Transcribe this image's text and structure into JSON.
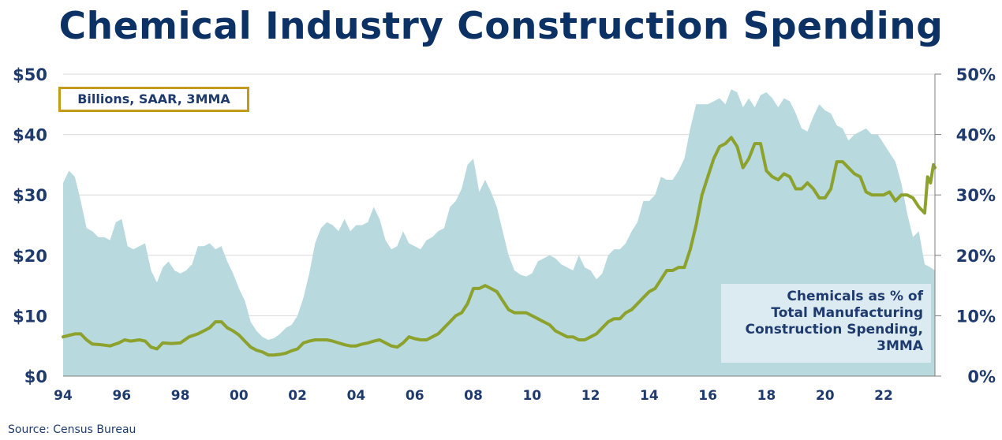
{
  "chart_data": {
    "type": "area",
    "title": "Chemical Industry Construction Spending",
    "unit_note": "Billions, SAAR, 3MMA",
    "source": "Source:  Census Bureau",
    "xlim": [
      1994.0,
      2023.75
    ],
    "x_ticks": [
      "94",
      "96",
      "98",
      "00",
      "02",
      "04",
      "06",
      "08",
      "10",
      "12",
      "14",
      "16",
      "18",
      "20",
      "22"
    ],
    "y_left": {
      "ticks": [
        "$0",
        "$10",
        "$20",
        "$30",
        "$40",
        "$50"
      ],
      "lim": [
        0,
        50
      ]
    },
    "y_right": {
      "ticks": [
        "0%",
        "10%",
        "20%",
        "30%",
        "40%",
        "50%"
      ],
      "lim": [
        0,
        50
      ]
    },
    "grid": "horizontal",
    "series": [
      {
        "name": "Chemicals as % of Total Manufacturing Construction Spending, 3MMA",
        "label_lines": [
          "Chemicals as % of",
          "Total Manufacturing",
          "Construction Spending,",
          "3MMA"
        ],
        "axis": "right",
        "kind": "area",
        "color": "#b8d9de",
        "points": [
          [
            1994.0,
            32
          ],
          [
            1994.2,
            34
          ],
          [
            1994.4,
            33
          ],
          [
            1994.6,
            29
          ],
          [
            1994.8,
            24.5
          ],
          [
            1995.0,
            24
          ],
          [
            1995.2,
            23
          ],
          [
            1995.4,
            23
          ],
          [
            1995.6,
            22.5
          ],
          [
            1995.8,
            25.5
          ],
          [
            1996.0,
            26
          ],
          [
            1996.2,
            21.5
          ],
          [
            1996.4,
            21
          ],
          [
            1996.6,
            21.5
          ],
          [
            1996.8,
            22
          ],
          [
            1997.0,
            17.5
          ],
          [
            1997.2,
            15.5
          ],
          [
            1997.4,
            18
          ],
          [
            1997.6,
            19
          ],
          [
            1997.8,
            17.5
          ],
          [
            1998.0,
            17
          ],
          [
            1998.2,
            17.5
          ],
          [
            1998.4,
            18.5
          ],
          [
            1998.6,
            21.5
          ],
          [
            1998.8,
            21.5
          ],
          [
            1999.0,
            22
          ],
          [
            1999.2,
            21
          ],
          [
            1999.4,
            21.5
          ],
          [
            1999.6,
            19
          ],
          [
            1999.8,
            17
          ],
          [
            2000.0,
            14.5
          ],
          [
            2000.2,
            12.5
          ],
          [
            2000.4,
            9
          ],
          [
            2000.6,
            7.5
          ],
          [
            2000.8,
            6.5
          ],
          [
            2001.0,
            6
          ],
          [
            2001.2,
            6.3
          ],
          [
            2001.4,
            7
          ],
          [
            2001.6,
            8
          ],
          [
            2001.8,
            8.5
          ],
          [
            2002.0,
            10
          ],
          [
            2002.2,
            13
          ],
          [
            2002.4,
            17
          ],
          [
            2002.6,
            22
          ],
          [
            2002.8,
            24.5
          ],
          [
            2003.0,
            25.5
          ],
          [
            2003.2,
            25
          ],
          [
            2003.4,
            24
          ],
          [
            2003.6,
            26
          ],
          [
            2003.8,
            24
          ],
          [
            2004.0,
            25
          ],
          [
            2004.2,
            25
          ],
          [
            2004.4,
            25.5
          ],
          [
            2004.6,
            28
          ],
          [
            2004.8,
            26
          ],
          [
            2005.0,
            22.5
          ],
          [
            2005.2,
            21
          ],
          [
            2005.4,
            21.5
          ],
          [
            2005.6,
            24
          ],
          [
            2005.8,
            22
          ],
          [
            2006.0,
            21.5
          ],
          [
            2006.2,
            21
          ],
          [
            2006.4,
            22.5
          ],
          [
            2006.6,
            23
          ],
          [
            2006.8,
            24
          ],
          [
            2007.0,
            24.5
          ],
          [
            2007.2,
            28
          ],
          [
            2007.4,
            29
          ],
          [
            2007.6,
            31
          ],
          [
            2007.8,
            35
          ],
          [
            2008.0,
            36
          ],
          [
            2008.2,
            30.5
          ],
          [
            2008.4,
            32.5
          ],
          [
            2008.6,
            30.5
          ],
          [
            2008.8,
            28
          ],
          [
            2009.0,
            24
          ],
          [
            2009.2,
            20
          ],
          [
            2009.4,
            17.5
          ],
          [
            2009.6,
            16.8
          ],
          [
            2009.8,
            16.5
          ],
          [
            2010.0,
            17
          ],
          [
            2010.2,
            19
          ],
          [
            2010.4,
            19.5
          ],
          [
            2010.6,
            20
          ],
          [
            2010.8,
            19.5
          ],
          [
            2011.0,
            18.5
          ],
          [
            2011.2,
            18
          ],
          [
            2011.4,
            17.5
          ],
          [
            2011.6,
            20
          ],
          [
            2011.8,
            18
          ],
          [
            2012.0,
            17.5
          ],
          [
            2012.2,
            16
          ],
          [
            2012.4,
            17
          ],
          [
            2012.6,
            20
          ],
          [
            2012.8,
            21
          ],
          [
            2013.0,
            21
          ],
          [
            2013.2,
            22
          ],
          [
            2013.4,
            24
          ],
          [
            2013.6,
            25.5
          ],
          [
            2013.8,
            29
          ],
          [
            2014.0,
            29
          ],
          [
            2014.2,
            30
          ],
          [
            2014.4,
            33
          ],
          [
            2014.6,
            32.5
          ],
          [
            2014.8,
            32.5
          ],
          [
            2015.0,
            34
          ],
          [
            2015.2,
            36
          ],
          [
            2015.4,
            41
          ],
          [
            2015.6,
            45
          ],
          [
            2015.8,
            45
          ],
          [
            2016.0,
            45
          ],
          [
            2016.2,
            45.5
          ],
          [
            2016.4,
            46
          ],
          [
            2016.6,
            45
          ],
          [
            2016.8,
            47.5
          ],
          [
            2017.0,
            47
          ],
          [
            2017.2,
            44.5
          ],
          [
            2017.4,
            46
          ],
          [
            2017.6,
            44.5
          ],
          [
            2017.8,
            46.5
          ],
          [
            2018.0,
            47
          ],
          [
            2018.2,
            46
          ],
          [
            2018.4,
            44.5
          ],
          [
            2018.6,
            46
          ],
          [
            2018.8,
            45.5
          ],
          [
            2019.0,
            43.5
          ],
          [
            2019.2,
            41
          ],
          [
            2019.4,
            40.5
          ],
          [
            2019.6,
            43
          ],
          [
            2019.8,
            45
          ],
          [
            2020.0,
            44
          ],
          [
            2020.2,
            43.5
          ],
          [
            2020.4,
            41.5
          ],
          [
            2020.6,
            41
          ],
          [
            2020.8,
            39
          ],
          [
            2021.0,
            40
          ],
          [
            2021.2,
            40.5
          ],
          [
            2021.4,
            41
          ],
          [
            2021.6,
            40
          ],
          [
            2021.8,
            40
          ],
          [
            2022.0,
            38.5
          ],
          [
            2022.2,
            37
          ],
          [
            2022.4,
            35.5
          ],
          [
            2022.6,
            32
          ],
          [
            2022.8,
            27
          ],
          [
            2023.0,
            23
          ],
          [
            2023.2,
            24
          ],
          [
            2023.4,
            18.5
          ],
          [
            2023.6,
            18
          ],
          [
            2023.75,
            17.5
          ]
        ]
      },
      {
        "name": "Chemical Industry Construction Spending",
        "axis": "left",
        "kind": "line",
        "color": "#8da22c",
        "points": [
          [
            1994.0,
            6.5
          ],
          [
            1994.4,
            7
          ],
          [
            1994.6,
            7
          ],
          [
            1994.8,
            6
          ],
          [
            1995.0,
            5.3
          ],
          [
            1995.3,
            5.2
          ],
          [
            1995.6,
            5
          ],
          [
            1995.9,
            5.5
          ],
          [
            1996.1,
            6
          ],
          [
            1996.3,
            5.8
          ],
          [
            1996.6,
            6
          ],
          [
            1996.8,
            5.8
          ],
          [
            1997.0,
            4.8
          ],
          [
            1997.2,
            4.5
          ],
          [
            1997.4,
            5.5
          ],
          [
            1997.7,
            5.4
          ],
          [
            1998.0,
            5.5
          ],
          [
            1998.3,
            6.5
          ],
          [
            1998.6,
            7
          ],
          [
            1998.8,
            7.5
          ],
          [
            1999.0,
            8
          ],
          [
            1999.2,
            9
          ],
          [
            1999.4,
            9
          ],
          [
            1999.6,
            8
          ],
          [
            1999.8,
            7.5
          ],
          [
            2000.0,
            6.8
          ],
          [
            2000.2,
            5.8
          ],
          [
            2000.4,
            4.8
          ],
          [
            2000.6,
            4.3
          ],
          [
            2000.8,
            4
          ],
          [
            2001.0,
            3.5
          ],
          [
            2001.2,
            3.5
          ],
          [
            2001.4,
            3.6
          ],
          [
            2001.6,
            3.8
          ],
          [
            2001.8,
            4.2
          ],
          [
            2002.0,
            4.5
          ],
          [
            2002.2,
            5.5
          ],
          [
            2002.4,
            5.8
          ],
          [
            2002.6,
            6
          ],
          [
            2002.8,
            6
          ],
          [
            2003.0,
            6
          ],
          [
            2003.2,
            5.8
          ],
          [
            2003.4,
            5.5
          ],
          [
            2003.6,
            5.2
          ],
          [
            2003.8,
            5
          ],
          [
            2004.0,
            5
          ],
          [
            2004.2,
            5.3
          ],
          [
            2004.4,
            5.5
          ],
          [
            2004.6,
            5.8
          ],
          [
            2004.8,
            6
          ],
          [
            2005.0,
            5.5
          ],
          [
            2005.2,
            5
          ],
          [
            2005.4,
            4.8
          ],
          [
            2005.6,
            5.5
          ],
          [
            2005.8,
            6.5
          ],
          [
            2006.0,
            6.2
          ],
          [
            2006.2,
            6
          ],
          [
            2006.4,
            6
          ],
          [
            2006.6,
            6.5
          ],
          [
            2006.8,
            7
          ],
          [
            2007.0,
            8
          ],
          [
            2007.2,
            9
          ],
          [
            2007.4,
            10
          ],
          [
            2007.6,
            10.5
          ],
          [
            2007.8,
            12
          ],
          [
            2008.0,
            14.5
          ],
          [
            2008.2,
            14.5
          ],
          [
            2008.4,
            15
          ],
          [
            2008.6,
            14.5
          ],
          [
            2008.8,
            14
          ],
          [
            2009.0,
            12.5
          ],
          [
            2009.2,
            11
          ],
          [
            2009.4,
            10.5
          ],
          [
            2009.6,
            10.5
          ],
          [
            2009.8,
            10.5
          ],
          [
            2010.0,
            10
          ],
          [
            2010.2,
            9.5
          ],
          [
            2010.4,
            9
          ],
          [
            2010.6,
            8.5
          ],
          [
            2010.8,
            7.5
          ],
          [
            2011.0,
            7
          ],
          [
            2011.2,
            6.5
          ],
          [
            2011.4,
            6.5
          ],
          [
            2011.6,
            6
          ],
          [
            2011.8,
            6
          ],
          [
            2012.0,
            6.5
          ],
          [
            2012.2,
            7
          ],
          [
            2012.4,
            8
          ],
          [
            2012.6,
            9
          ],
          [
            2012.8,
            9.5
          ],
          [
            2013.0,
            9.5
          ],
          [
            2013.2,
            10.5
          ],
          [
            2013.4,
            11
          ],
          [
            2013.6,
            12
          ],
          [
            2013.8,
            13
          ],
          [
            2014.0,
            14
          ],
          [
            2014.2,
            14.5
          ],
          [
            2014.4,
            16
          ],
          [
            2014.6,
            17.5
          ],
          [
            2014.8,
            17.5
          ],
          [
            2015.0,
            18
          ],
          [
            2015.2,
            18
          ],
          [
            2015.4,
            21
          ],
          [
            2015.6,
            25
          ],
          [
            2015.8,
            30
          ],
          [
            2016.0,
            33
          ],
          [
            2016.2,
            36
          ],
          [
            2016.4,
            38
          ],
          [
            2016.6,
            38.5
          ],
          [
            2016.8,
            39.5
          ],
          [
            2017.0,
            38
          ],
          [
            2017.2,
            34.5
          ],
          [
            2017.4,
            36
          ],
          [
            2017.6,
            38.5
          ],
          [
            2017.8,
            38.5
          ],
          [
            2018.0,
            34
          ],
          [
            2018.2,
            33
          ],
          [
            2018.4,
            32.5
          ],
          [
            2018.6,
            33.5
          ],
          [
            2018.8,
            33
          ],
          [
            2019.0,
            31
          ],
          [
            2019.2,
            31
          ],
          [
            2019.4,
            32
          ],
          [
            2019.6,
            31
          ],
          [
            2019.8,
            29.5
          ],
          [
            2020.0,
            29.5
          ],
          [
            2020.2,
            31
          ],
          [
            2020.4,
            35.5
          ],
          [
            2020.6,
            35.5
          ],
          [
            2020.8,
            34.5
          ],
          [
            2021.0,
            33.5
          ],
          [
            2021.2,
            33
          ],
          [
            2021.4,
            30.5
          ],
          [
            2021.6,
            30
          ],
          [
            2021.8,
            30
          ],
          [
            2022.0,
            30
          ],
          [
            2022.2,
            30.5
          ],
          [
            2022.4,
            29
          ],
          [
            2022.6,
            30
          ],
          [
            2022.8,
            30
          ],
          [
            2023.0,
            29.5
          ],
          [
            2023.2,
            28
          ],
          [
            2023.4,
            27
          ],
          [
            2023.5,
            33
          ],
          [
            2023.6,
            32
          ],
          [
            2023.7,
            35
          ],
          [
            2023.75,
            34.5
          ]
        ]
      }
    ]
  }
}
